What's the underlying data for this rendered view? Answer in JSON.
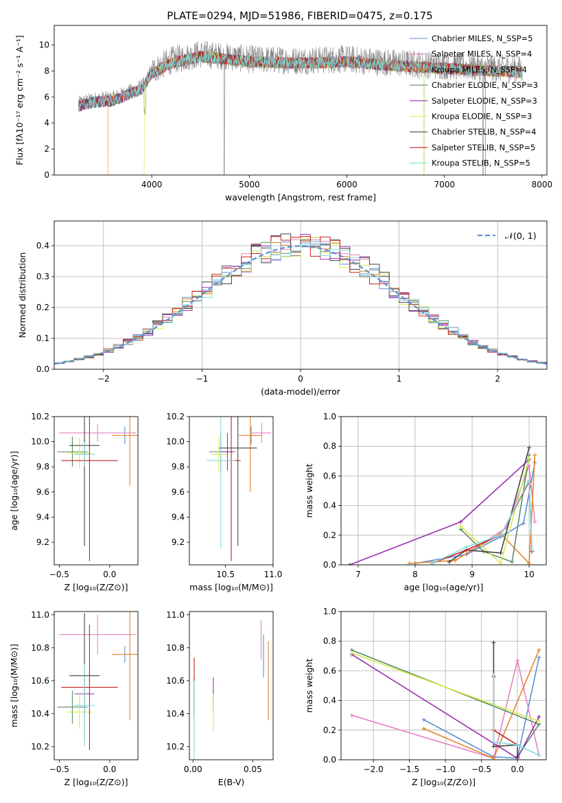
{
  "figure": {
    "title": "PLATE=0294, MJD=51986, FIBERID=0475, z=0.175"
  },
  "chart_data": [
    {
      "type": "line",
      "id": "spectrum",
      "title": "PLATE=0294, MJD=51986, FIBERID=0475, z=0.175",
      "xlabel": "wavelength [Angstrom, rest frame]",
      "ylabel": "Flux [fλ10⁻¹⁷ erg cm⁻² s⁻¹ A⁻¹]",
      "xlim": [
        3000,
        8050
      ],
      "ylim": [
        0,
        11.5
      ],
      "xticks": [
        4000,
        5000,
        6000,
        7000,
        8000
      ],
      "yticks": [
        0,
        2,
        4,
        6,
        8,
        10
      ],
      "legend_position": "upper-right",
      "data_color": "#808080",
      "data_profile": {
        "x": [
          3250,
          3400,
          3600,
          3900,
          4000,
          4200,
          4500,
          5000,
          5500,
          6000,
          6500,
          7000,
          7500,
          7800
        ],
        "y": [
          5.5,
          5.8,
          5.9,
          6.8,
          8.0,
          8.8,
          9.3,
          8.9,
          8.8,
          8.9,
          8.6,
          8.4,
          8.2,
          8.1
        ]
      },
      "series": [
        {
          "name": "Chabrier MILES, N_SSP=5",
          "color": "#5b8fd6"
        },
        {
          "name": "Salpeter MILES, N_SSP=4",
          "color": "#e87fc3"
        },
        {
          "name": "Kroupa MILES, N_SSP=4",
          "color": "#e8832a"
        },
        {
          "name": "Chabrier ELODIE, N_SSP=3",
          "color": "#5a8a6a"
        },
        {
          "name": "Salpeter ELODIE, N_SSP=3",
          "color": "#9b30b0"
        },
        {
          "name": "Kroupa ELODIE, N_SSP=3",
          "color": "#d6ea4a"
        },
        {
          "name": "Chabrier STELIB, N_SSP=4",
          "color": "#444444"
        },
        {
          "name": "Salpeter STELIB, N_SSP=5",
          "color": "#c81e1e"
        },
        {
          "name": "Kroupa STELIB, N_SSP=5",
          "color": "#80dcdc"
        }
      ]
    },
    {
      "type": "step-histogram",
      "id": "residuals",
      "xlabel": "(data-model)/error",
      "ylabel": "Normed distribution",
      "xlim": [
        -2.5,
        2.5
      ],
      "ylim": [
        0,
        0.48
      ],
      "xticks": [
        -2,
        -1,
        0,
        1,
        2
      ],
      "yticks": [
        0.0,
        0.1,
        0.2,
        0.3,
        0.4
      ],
      "grid": true,
      "bin_width": 0.1,
      "reference": {
        "name": "𝒩(0, 1)",
        "color": "#5b8fd6",
        "style": "dashed",
        "legend_position": "upper-right"
      }
    },
    {
      "type": "errorbar",
      "id": "age-vs-Z",
      "xlabel": "Z [log₁₀(Z/Z⊙)]",
      "ylabel": "age  [log₁₀(age/yr)]",
      "xlim": [
        -0.55,
        0.28
      ],
      "ylim": [
        9.02,
        10.2
      ],
      "xticks": [
        -0.5,
        0.0
      ],
      "yticks": [
        9.2,
        9.4,
        9.6,
        9.8,
        10.0,
        10.2
      ],
      "points": [
        {
          "c": "#5b8fd6",
          "x": 0.15,
          "xerr": 0.0,
          "y": 10.05,
          "yerr": 0.07
        },
        {
          "c": "#e87fc3",
          "x": -0.12,
          "xerr": 0.38,
          "y": 10.07,
          "yerr": 0.07
        },
        {
          "c": "#e8832a",
          "x": 0.2,
          "xerr": 0.18,
          "y": 10.05,
          "yerr": 0.4
        },
        {
          "c": "#5a8a6a",
          "x": -0.37,
          "xerr": 0.15,
          "y": 9.92,
          "yerr": 0.12
        },
        {
          "c": "#9b30b0",
          "x": -0.25,
          "xerr": 0.1,
          "y": 9.9,
          "yerr": 0.12
        },
        {
          "c": "#d6ea4a",
          "x": -0.3,
          "xerr": 0.12,
          "y": 9.91,
          "yerr": 0.12
        },
        {
          "c": "#444444",
          "x": -0.25,
          "xerr": 0.15,
          "y": 9.97,
          "yerr": 0.8
        },
        {
          "c": "#c81e1e",
          "x": -0.2,
          "xerr": 0.28,
          "y": 9.85,
          "yerr": 0.8
        },
        {
          "c": "#80dcdc",
          "x": -0.25,
          "xerr": 0.1,
          "y": 9.9,
          "yerr": 0.1
        }
      ]
    },
    {
      "type": "errorbar",
      "id": "age-vs-mass",
      "xlabel": "mass [log₁₀(M/M⊙)]",
      "ylabel": "",
      "xlim": [
        10.12,
        11.0
      ],
      "ylim": [
        9.02,
        10.2
      ],
      "xticks": [
        10.5,
        11.0
      ],
      "yticks": [
        9.2,
        9.4,
        9.6,
        9.8,
        10.0,
        10.2
      ],
      "points": [
        {
          "c": "#5b8fd6",
          "x": 10.77,
          "xerr": 0.0,
          "y": 10.05,
          "yerr": 0.07
        },
        {
          "c": "#e87fc3",
          "x": 10.88,
          "xerr": 0.1,
          "y": 10.07,
          "yerr": 0.08
        },
        {
          "c": "#e8832a",
          "x": 10.76,
          "xerr": 0.12,
          "y": 10.05,
          "yerr": 0.45
        },
        {
          "c": "#5a8a6a",
          "x": 10.45,
          "xerr": 0.12,
          "y": 9.92,
          "yerr": 0.15
        },
        {
          "c": "#9b30b0",
          "x": 10.52,
          "xerr": 0.08,
          "y": 9.92,
          "yerr": 0.15
        },
        {
          "c": "#d6ea4a",
          "x": 10.43,
          "xerr": 0.08,
          "y": 9.9,
          "yerr": 0.15
        },
        {
          "c": "#444444",
          "x": 10.63,
          "xerr": 0.2,
          "y": 9.95,
          "yerr": 0.78
        },
        {
          "c": "#c81e1e",
          "x": 10.56,
          "xerr": 0.1,
          "y": 9.85,
          "yerr": 0.8
        },
        {
          "c": "#80dcdc",
          "x": 10.45,
          "xerr": 0.15,
          "y": 9.85,
          "yerr": 0.7
        }
      ]
    },
    {
      "type": "line",
      "id": "weight-vs-age",
      "xlabel": "age  [log₁₀(age/yr)]",
      "ylabel": "mass weight",
      "xlim": [
        6.7,
        10.3
      ],
      "ylim": [
        0,
        1.0
      ],
      "xticks": [
        7,
        8,
        9,
        10
      ],
      "yticks": [
        0.0,
        0.2,
        0.4,
        0.6,
        0.8,
        1.0
      ],
      "grid": true,
      "series": [
        {
          "c": "#5b8fd6",
          "x": [
            8.0,
            8.9,
            9.5,
            9.9,
            10.1
          ],
          "y": [
            0.01,
            0.07,
            0.19,
            0.28,
            0.69
          ]
        },
        {
          "c": "#e87fc3",
          "x": [
            8.7,
            9.0,
            9.6,
            10.0,
            10.1
          ],
          "y": [
            0.03,
            0.1,
            0.25,
            0.67,
            0.29
          ]
        },
        {
          "c": "#e8832a",
          "x": [
            7.9,
            8.7,
            9.5,
            10.0,
            10.1
          ],
          "y": [
            0.01,
            0.03,
            0.21,
            0.01,
            0.74
          ]
        },
        {
          "c": "#5a8a6a",
          "x": [
            8.8,
            9.2,
            9.7,
            10.0
          ],
          "y": [
            0.24,
            0.09,
            0.02,
            0.74
          ]
        },
        {
          "c": "#9b30b0",
          "x": [
            6.85,
            8.8,
            10.0
          ],
          "y": [
            0.0,
            0.29,
            0.71
          ]
        },
        {
          "c": "#d6ea4a",
          "x": [
            8.8,
            9.5,
            10.0
          ],
          "y": [
            0.26,
            0.01,
            0.72
          ]
        },
        {
          "c": "#444444",
          "x": [
            8.6,
            8.9,
            9.5,
            10.0
          ],
          "y": [
            0.02,
            0.1,
            0.08,
            0.79
          ]
        },
        {
          "c": "#c81e1e",
          "x": [
            8.3,
            8.9,
            9.5,
            10.0,
            10.05
          ],
          "y": [
            0.01,
            0.1,
            0.2,
            0.56,
            0.09
          ]
        },
        {
          "c": "#80dcdc",
          "x": [
            8.3,
            8.9,
            9.5,
            10.0,
            10.05
          ],
          "y": [
            0.01,
            0.12,
            0.2,
            0.57,
            0.1
          ]
        }
      ]
    },
    {
      "type": "errorbar",
      "id": "mass-vs-Z",
      "xlabel": "Z [log₁₀(Z/Z⊙)]",
      "ylabel": "mass [log₁₀(M/M⊙)]",
      "xlim": [
        -0.55,
        0.28
      ],
      "ylim": [
        10.12,
        11.02
      ],
      "xticks": [
        -0.5,
        0.0
      ],
      "yticks": [
        10.2,
        10.4,
        10.6,
        10.8,
        11.0
      ],
      "points": [
        {
          "c": "#5b8fd6",
          "x": 0.15,
          "xerr": 0.0,
          "y": 10.76,
          "yerr": 0.05
        },
        {
          "c": "#e87fc3",
          "x": -0.12,
          "xerr": 0.38,
          "y": 10.88,
          "yerr": 0.12
        },
        {
          "c": "#e8832a",
          "x": 0.2,
          "xerr": 0.18,
          "y": 10.76,
          "yerr": 0.4
        },
        {
          "c": "#5a8a6a",
          "x": -0.37,
          "xerr": 0.15,
          "y": 10.44,
          "yerr": 0.1
        },
        {
          "c": "#9b30b0",
          "x": -0.25,
          "xerr": 0.1,
          "y": 10.52,
          "yerr": 0.12
        },
        {
          "c": "#d6ea4a",
          "x": -0.3,
          "xerr": 0.12,
          "y": 10.41,
          "yerr": 0.1
        },
        {
          "c": "#444444",
          "x": -0.25,
          "xerr": 0.15,
          "y": 10.63,
          "yerr": 0.38
        },
        {
          "c": "#c81e1e",
          "x": -0.2,
          "xerr": 0.28,
          "y": 10.56,
          "yerr": 0.38
        },
        {
          "c": "#80dcdc",
          "x": -0.25,
          "xerr": 0.1,
          "y": 10.45,
          "yerr": 0.25
        }
      ]
    },
    {
      "type": "errorbar",
      "id": "mass-vs-ebv",
      "xlabel": "E(B-V)",
      "ylabel": "",
      "xlim": [
        -0.003,
        0.067
      ],
      "ylim": [
        10.12,
        11.02
      ],
      "xticks": [
        0.0,
        0.05
      ],
      "yticks": [
        10.2,
        10.4,
        10.6,
        10.8,
        11.0
      ],
      "points": [
        {
          "c": "#5b8fd6",
          "x": 0.059,
          "xerr": 0,
          "y": 10.75,
          "yerr": 0.13
        },
        {
          "c": "#e87fc3",
          "x": 0.057,
          "xerr": 0,
          "y": 10.85,
          "yerr": 0.12
        },
        {
          "c": "#e8832a",
          "x": 0.063,
          "xerr": 0,
          "y": 10.6,
          "yerr": 0.24
        },
        {
          "c": "#5a8a6a",
          "x": 0.001,
          "xerr": 0,
          "y": 10.44,
          "yerr": 0.18
        },
        {
          "c": "#9b30b0",
          "x": 0.017,
          "xerr": 0,
          "y": 10.52,
          "yerr": 0.1
        },
        {
          "c": "#d6ea4a",
          "x": 0.017,
          "xerr": 0,
          "y": 10.41,
          "yerr": 0.11
        },
        {
          "c": "#444444",
          "x": 0.001,
          "xerr": 0,
          "y": 10.5,
          "yerr": 0.12
        },
        {
          "c": "#c81e1e",
          "x": 0.001,
          "xerr": 0,
          "y": 10.56,
          "yerr": 0.18
        },
        {
          "c": "#80dcdc",
          "x": 0.001,
          "xerr": 0,
          "y": 10.35,
          "yerr": 0.25
        }
      ]
    },
    {
      "type": "line",
      "id": "weight-vs-Z",
      "xlabel": "Z [log₁₀(Z/Z⊙)]",
      "ylabel": "mass weight",
      "xlim": [
        -2.45,
        0.4
      ],
      "ylim": [
        0,
        1.0
      ],
      "xticks": [
        -2.0,
        -1.5,
        -1.0,
        -0.5,
        0.0
      ],
      "yticks": [
        0.0,
        0.2,
        0.4,
        0.6,
        0.8,
        1.0
      ],
      "grid": true,
      "series": [
        {
          "c": "#5b8fd6",
          "x": [
            -1.3,
            -0.33,
            0.0,
            0.3
          ],
          "y": [
            0.27,
            0.02,
            0.01,
            0.69
          ]
        },
        {
          "c": "#e87fc3",
          "x": [
            -2.3,
            -0.33,
            0.0,
            0.3
          ],
          "y": [
            0.3,
            0.01,
            0.67,
            0.03
          ]
        },
        {
          "c": "#e8832a",
          "x": [
            -1.3,
            -0.33,
            0.3
          ],
          "y": [
            0.21,
            0.01,
            0.74
          ]
        },
        {
          "c": "#5a8a6a",
          "x": [
            -2.3,
            0.3,
            0.0
          ],
          "y": [
            0.74,
            0.24,
            0.02
          ]
        },
        {
          "c": "#9b30b0",
          "x": [
            -2.3,
            0.0,
            0.3
          ],
          "y": [
            0.71,
            0.01,
            0.29
          ]
        },
        {
          "c": "#d6ea4a",
          "x": [
            -2.3,
            0.3
          ],
          "y": [
            0.72,
            0.26
          ]
        },
        {
          "c": "#444444",
          "x": [
            -0.33,
            -0.33,
            0.0,
            0.0
          ],
          "y": [
            0.79,
            0.09,
            0.1,
            0.02
          ]
        },
        {
          "c": "#c81e1e",
          "x": [
            -0.33,
            -0.33,
            0.0
          ],
          "y": [
            0.56,
            0.2,
            0.1
          ]
        },
        {
          "c": "#80dcdc",
          "x": [
            -0.33,
            -0.33,
            0.0,
            0.3
          ],
          "y": [
            0.57,
            0.12,
            0.1,
            0.03
          ]
        }
      ]
    }
  ]
}
